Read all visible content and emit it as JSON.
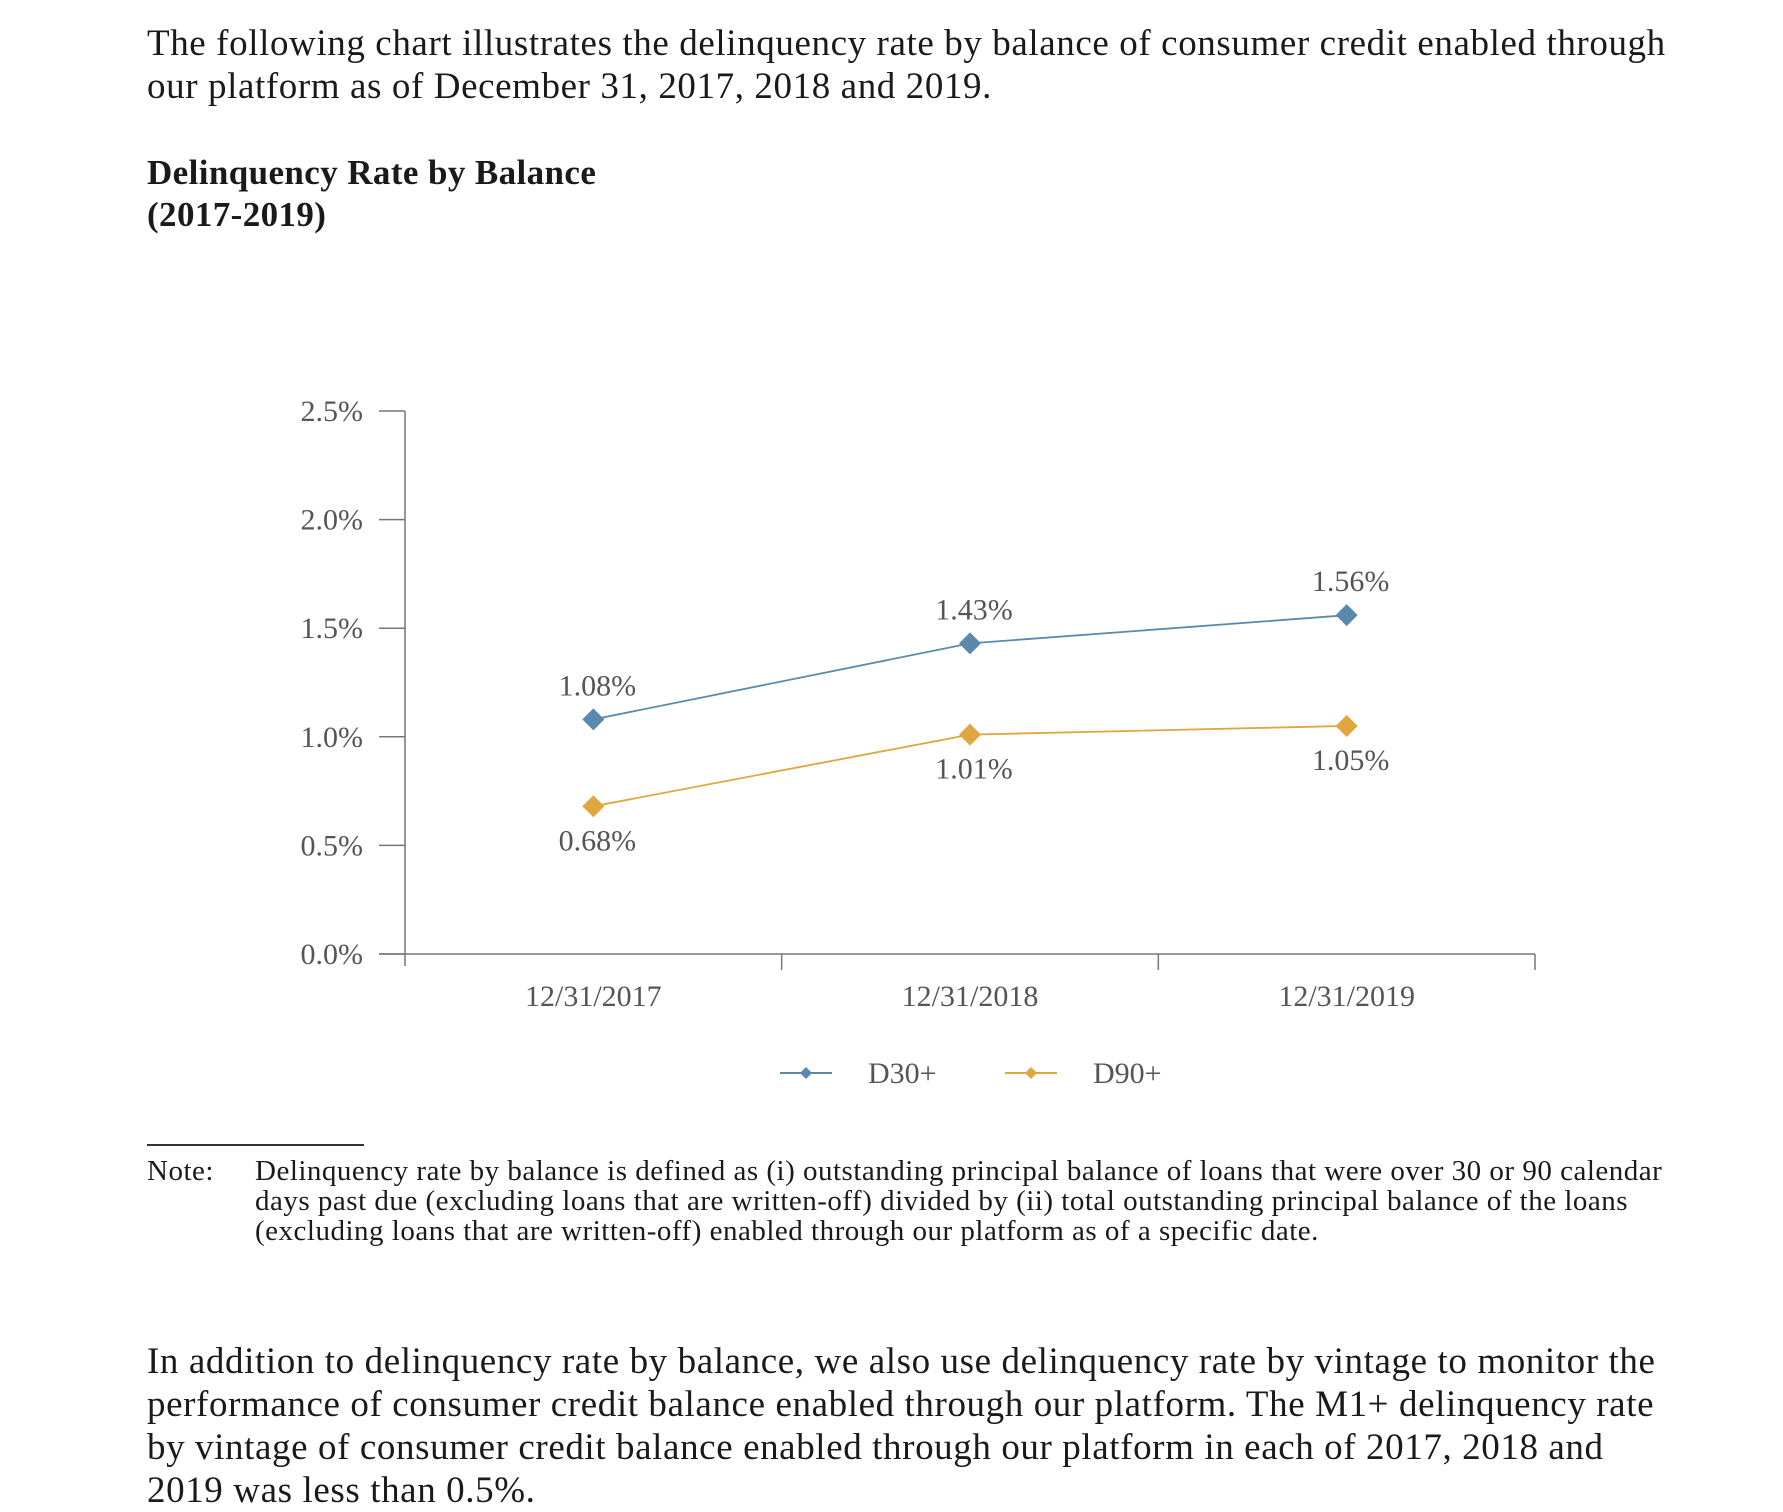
{
  "intro_text": "The following chart illustrates the delinquency rate by balance of consumer credit enabled through our platform as of December 31, 2017, 2018 and 2019.",
  "chart_title_line1": "Delinquency Rate by Balance",
  "chart_title_line2": "(2017-2019)",
  "chart_data": {
    "type": "line",
    "title": "Delinquency Rate by Balance (2017-2019)",
    "categories": [
      "12/31/2017",
      "12/31/2018",
      "12/31/2019"
    ],
    "series": [
      {
        "name": "D30+",
        "values": [
          1.08,
          1.43,
          1.56
        ],
        "labels": [
          "1.08%",
          "1.43%",
          "1.56%"
        ],
        "color": "#5b89ad",
        "label_position": "above"
      },
      {
        "name": "D90+",
        "values": [
          0.68,
          1.01,
          1.05
        ],
        "labels": [
          "0.68%",
          "1.01%",
          "1.05%"
        ],
        "color": "#e0a63f",
        "label_position": "below"
      }
    ],
    "yticks": [
      "0.0%",
      "0.5%",
      "1.0%",
      "1.5%",
      "2.0%",
      "2.5%"
    ],
    "ylim": [
      0,
      2.5
    ],
    "xlabel": "",
    "ylabel": "",
    "grid": false,
    "legend_position": "bottom"
  },
  "note_label": "Note:",
  "note_text": "Delinquency rate by balance is defined as (i) outstanding principal balance of loans that were over 30 or 90 calendar days past due (excluding loans that are written-off) divided by (ii) total outstanding principal balance of the loans (excluding loans that are written-off) enabled through our platform as of a specific date.",
  "outro_text": "In addition to delinquency rate by balance, we also use delinquency rate by vintage to monitor the performance of consumer credit balance enabled through our platform. The M1+ delinquency rate by vintage of consumer credit balance enabled through our platform in each of 2017, 2018 and 2019 was less than 0.5%."
}
